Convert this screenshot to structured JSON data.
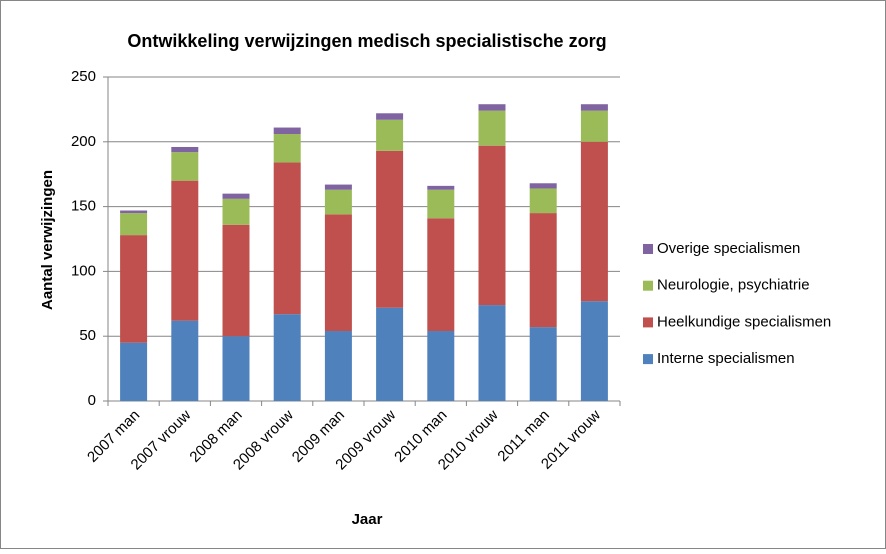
{
  "chart_data": {
    "type": "stacked_bar",
    "title": "Ontwikkeling verwijzingen medisch specialistische zorg",
    "x_label": "Jaar",
    "y_label": "Aantal verwijzingen",
    "categories": [
      "2007 man",
      "2007 vrouw",
      "2008 man",
      "2008 vrouw",
      "2009 man",
      "2009 vrouw",
      "2010 man",
      "2010 vrouw",
      "2011 man",
      "2011 vrouw"
    ],
    "series": [
      {
        "name": "Interne specialismen",
        "color": "#4f81bd",
        "values": [
          45,
          62,
          50,
          67,
          54,
          72,
          54,
          74,
          57,
          77
        ]
      },
      {
        "name": "Heelkundige specialismen",
        "color": "#c0504d",
        "values": [
          83,
          108,
          86,
          117,
          90,
          121,
          87,
          123,
          88,
          123
        ]
      },
      {
        "name": "Neurologie, psychiatrie",
        "color": "#9bbb59",
        "values": [
          17,
          22,
          20,
          22,
          19,
          24,
          22,
          27,
          19,
          24
        ]
      },
      {
        "name": "Overige specialismen",
        "color": "#8064a2",
        "values": [
          2,
          4,
          4,
          5,
          4,
          5,
          3,
          5,
          4,
          5
        ]
      }
    ],
    "ylim": [
      0,
      250
    ],
    "yticks": [
      0,
      50,
      100,
      150,
      200,
      250
    ],
    "grid": true,
    "legend": "right"
  }
}
